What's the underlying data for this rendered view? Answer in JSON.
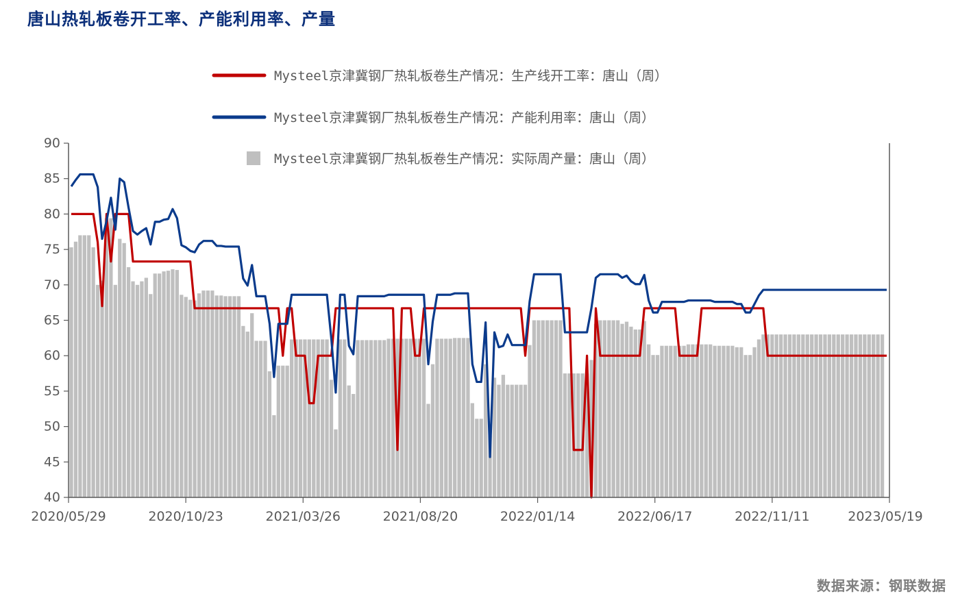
{
  "title": "唐山热轧板卷开工率、产能利用率、产量",
  "source": "数据来源：钢联数据",
  "chart_data": {
    "type": "line",
    "title": "唐山热轧板卷开工率、产能利用率、产量",
    "ylim": [
      40,
      90
    ],
    "yticks": [
      40,
      45,
      50,
      55,
      60,
      65,
      70,
      75,
      80,
      85,
      90
    ],
    "xtick_labels": [
      "2020/05/29",
      "2020/10/23",
      "2021/03/26",
      "2021/08/20",
      "2022/01/14",
      "2022/06/17",
      "2022/11/11",
      "2023/05/19"
    ],
    "legend_position": "top-center",
    "grid": false,
    "x_start": "2020/05/29",
    "x_end": "2023/05/19",
    "series": [
      {
        "name": "Mysteel京津冀钢厂热轧板卷生产情况：生产线开工率：唐山（周）",
        "type": "line",
        "color": "#c00000",
        "values": [
          80,
          80,
          80,
          80,
          80,
          80,
          76,
          67,
          80,
          73.3,
          80,
          80,
          80,
          80,
          73.3,
          73.3,
          73.3,
          73.3,
          73.3,
          73.3,
          73.3,
          73.3,
          73.3,
          73.3,
          73.3,
          73.3,
          73.3,
          73.3,
          66.7,
          66.7,
          66.7,
          66.7,
          66.7,
          66.7,
          66.7,
          66.7,
          66.7,
          66.7,
          66.7,
          66.7,
          66.7,
          66.7,
          66.7,
          66.7,
          66.7,
          66.7,
          66.7,
          66.7,
          60,
          66.7,
          66.7,
          60,
          60,
          60,
          53.3,
          53.3,
          60,
          60,
          60,
          60,
          66.7,
          66.7,
          66.7,
          66.7,
          66.7,
          66.7,
          66.7,
          66.7,
          66.7,
          66.7,
          66.7,
          66.7,
          66.7,
          66.7,
          46.7,
          66.7,
          66.7,
          66.7,
          60,
          60,
          66.7,
          66.7,
          66.7,
          66.7,
          66.7,
          66.7,
          66.7,
          66.7,
          66.7,
          66.7,
          66.7,
          66.7,
          66.7,
          66.7,
          66.7,
          66.7,
          66.7,
          66.7,
          66.7,
          66.7,
          66.7,
          66.7,
          66.7,
          60,
          66.7,
          66.7,
          66.7,
          66.7,
          66.7,
          66.7,
          66.7,
          66.7,
          66.7,
          66.7,
          46.7,
          46.7,
          46.7,
          60,
          40,
          66.7,
          60,
          60,
          60,
          60,
          60,
          60,
          60,
          60,
          60,
          60,
          66.7,
          66.7,
          66.7,
          66.7,
          66.7,
          66.7,
          66.7,
          66.7,
          60,
          60,
          60,
          60,
          60,
          66.7,
          66.7,
          66.7,
          66.7,
          66.7,
          66.7,
          66.7,
          66.7,
          66.7,
          66.7,
          66.7,
          66.7,
          66.7,
          66.7,
          66.7,
          60,
          60,
          60,
          60,
          60,
          60,
          60,
          60,
          60,
          60,
          60,
          60,
          60,
          60,
          60,
          60,
          60,
          60,
          60,
          60,
          60,
          60,
          60,
          60,
          60,
          60,
          60,
          60
        ]
      },
      {
        "name": "Mysteel京津冀钢厂热轧板卷生产情况：产能利用率：唐山（周）",
        "type": "line",
        "color": "#0b3b8c",
        "values": [
          83.9,
          84.8,
          85.6,
          85.6,
          85.6,
          85.6,
          83.8,
          76.5,
          79,
          82.3,
          77.8,
          85,
          84.5,
          80.9,
          77.6,
          77.1,
          77.6,
          78,
          75.7,
          78.9,
          78.9,
          79.2,
          79.3,
          80.7,
          79.4,
          75.6,
          75.3,
          74.8,
          74.6,
          75.7,
          76.2,
          76.2,
          76.2,
          75.5,
          75.5,
          75.4,
          75.4,
          75.4,
          75.4,
          70.9,
          69.9,
          72.8,
          68.4,
          68.4,
          68.4,
          64.5,
          57,
          64.5,
          64.5,
          64.5,
          68.6,
          68.6,
          68.6,
          68.6,
          68.6,
          68.6,
          68.6,
          68.6,
          68.6,
          62.4,
          54.8,
          68.6,
          68.6,
          61.4,
          60.2,
          68.4,
          68.4,
          68.4,
          68.4,
          68.4,
          68.4,
          68.4,
          68.6,
          68.6,
          68.6,
          68.6,
          68.6,
          68.6,
          68.6,
          68.6,
          68.6,
          58.8,
          64.8,
          68.6,
          68.6,
          68.6,
          68.6,
          68.8,
          68.8,
          68.8,
          68.8,
          58.8,
          56.3,
          56.3,
          64.7,
          45.7,
          63.3,
          61.2,
          61.4,
          63,
          61.5,
          61.5,
          61.5,
          61.5,
          67.7,
          71.5,
          71.5,
          71.5,
          71.5,
          71.5,
          71.5,
          71.5,
          63.3,
          63.3,
          63.3,
          63.3,
          63.3,
          63.3,
          66.7,
          71,
          71.5,
          71.5,
          71.5,
          71.5,
          71.5,
          71,
          71.3,
          70.5,
          70.1,
          70.1,
          71.4,
          67.8,
          66.1,
          66.1,
          67.6,
          67.6,
          67.6,
          67.6,
          67.6,
          67.6,
          67.8,
          67.8,
          67.8,
          67.8,
          67.8,
          67.8,
          67.6,
          67.6,
          67.6,
          67.6,
          67.6,
          67.3,
          67.3,
          66.1,
          66.1,
          67.3,
          68.5,
          69.3,
          69.3,
          69.3,
          69.3,
          69.3,
          69.3,
          69.3,
          69.3,
          69.3,
          69.3,
          69.3,
          69.3,
          69.3,
          69.3,
          69.3,
          69.3,
          69.3,
          69.3,
          69.3,
          69.3,
          69.3,
          69.3,
          69.3,
          69.3,
          69.3,
          69.3,
          69.3,
          69.3,
          69.3
        ]
      },
      {
        "name": "Mysteel京津冀钢厂热轧板卷生产情况：实际周产量：唐山（周）",
        "type": "bar",
        "color": "#bfbfbf",
        "values": [
          75.3,
          76.1,
          77,
          77,
          77,
          75.3,
          70,
          70.6,
          79.4,
          79.4,
          70,
          76.5,
          75.9,
          72.5,
          70.5,
          70,
          70.5,
          71,
          68.7,
          71.6,
          71.6,
          71.9,
          72,
          72.2,
          72.1,
          68.6,
          68.3,
          67.9,
          67.8,
          68.8,
          69.2,
          69.2,
          69.2,
          68.5,
          68.5,
          68.4,
          68.4,
          68.4,
          68.4,
          64.2,
          63.4,
          66,
          62.1,
          62.1,
          62.1,
          57.8,
          51.6,
          58.6,
          58.6,
          58.6,
          62.3,
          62.3,
          62.3,
          62.3,
          62.3,
          62.3,
          62.3,
          62.3,
          62.3,
          56.6,
          49.6,
          62.3,
          62.3,
          55.8,
          54.6,
          62.2,
          62.2,
          62.2,
          62.2,
          62.2,
          62.2,
          62.2,
          62.4,
          62.4,
          62.4,
          62.4,
          62.4,
          62.4,
          62.4,
          62.4,
          62.4,
          53.2,
          58.8,
          62.4,
          62.4,
          62.4,
          62.4,
          62.5,
          62.5,
          62.5,
          62.5,
          53.3,
          51.1,
          51.1,
          58.8,
          48.7,
          56.9,
          55.9,
          57.3,
          55.9,
          55.9,
          55.9,
          55.9,
          55.9,
          61.5,
          65,
          65,
          65,
          65,
          65,
          65,
          65,
          57.5,
          57.5,
          57.5,
          57.5,
          57.5,
          57.5,
          59.4,
          64.5,
          65,
          65,
          65,
          65,
          65,
          64.5,
          64.8,
          64.1,
          63.7,
          63.7,
          64.9,
          61.6,
          60.1,
          60.1,
          61.4,
          61.4,
          61.4,
          61.4,
          61.4,
          61.4,
          61.6,
          61.6,
          61.6,
          61.6,
          61.6,
          61.6,
          61.4,
          61.4,
          61.4,
          61.4,
          61.4,
          61.2,
          61.2,
          60.1,
          60.1,
          61.2,
          62.3,
          63,
          63,
          63,
          63,
          63,
          63,
          63,
          63,
          63,
          63,
          63,
          63,
          63,
          63,
          63,
          63,
          63,
          63,
          63,
          63,
          63,
          63,
          63,
          63,
          63,
          63,
          63,
          63
        ]
      }
    ]
  }
}
